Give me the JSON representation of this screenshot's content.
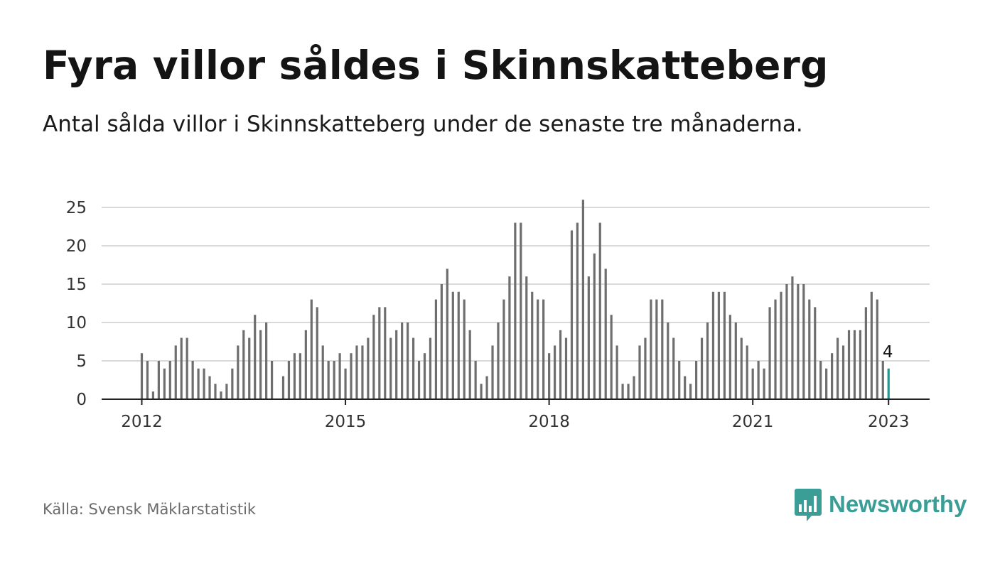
{
  "header": {
    "title": "Fyra villor såldes i Skinnskatteberg",
    "subtitle": "Antal sålda villor i Skinnskatteberg under de senaste tre månaderna."
  },
  "footer": {
    "source": "Källa: Svensk Mäklarstatistik",
    "brand": "Newsworthy",
    "brand_icon": "bar-chart-speech-bubble-icon"
  },
  "colors": {
    "bar": "#6e6e6e",
    "highlight": "#1a9a92",
    "grid": "#d9d9d9",
    "axis": "#222222",
    "brand": "#3a9e96"
  },
  "chart_data": {
    "type": "bar",
    "ylim": [
      0,
      26
    ],
    "y_ticks": [
      0,
      5,
      10,
      15,
      20,
      25
    ],
    "x_ticks": [
      "2012",
      "2015",
      "2018",
      "2021",
      "2023"
    ],
    "grid": true,
    "start": "2012-01",
    "end": "2023-01",
    "values": [
      6,
      5,
      1,
      5,
      4,
      5,
      7,
      8,
      8,
      5,
      4,
      4,
      3,
      2,
      1,
      2,
      4,
      7,
      9,
      8,
      11,
      9,
      10,
      5,
      null,
      3,
      5,
      6,
      6,
      9,
      13,
      12,
      7,
      5,
      5,
      6,
      4,
      6,
      7,
      7,
      8,
      11,
      12,
      12,
      8,
      9,
      10,
      10,
      8,
      5,
      6,
      8,
      13,
      15,
      17,
      14,
      14,
      13,
      9,
      5,
      2,
      3,
      7,
      10,
      13,
      16,
      23,
      23,
      16,
      14,
      13,
      13,
      6,
      7,
      9,
      8,
      22,
      23,
      26,
      16,
      19,
      23,
      17,
      11,
      7,
      2,
      2,
      3,
      7,
      8,
      13,
      13,
      13,
      10,
      8,
      5,
      3,
      2,
      5,
      8,
      10,
      14,
      14,
      14,
      11,
      10,
      8,
      7,
      4,
      5,
      4,
      12,
      13,
      14,
      15,
      16,
      15,
      15,
      13,
      12,
      5,
      4,
      6,
      8,
      7,
      9,
      9,
      9,
      12,
      14,
      13,
      5,
      4
    ],
    "highlight": {
      "x": "2023-01",
      "value": 4,
      "label": "4"
    }
  }
}
